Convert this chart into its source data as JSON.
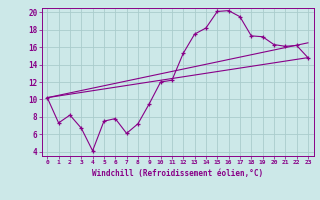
{
  "title": "",
  "xlabel": "Windchill (Refroidissement éolien,°C)",
  "background_color": "#cce8e8",
  "grid_color": "#aacccc",
  "line_color": "#880088",
  "figsize": [
    3.2,
    2.0
  ],
  "dpi": 100,
  "xlim": [
    -0.5,
    23.5
  ],
  "ylim": [
    3.5,
    20.5
  ],
  "yticks": [
    4,
    6,
    8,
    10,
    12,
    14,
    16,
    18,
    20
  ],
  "xticks": [
    0,
    1,
    2,
    3,
    4,
    5,
    6,
    7,
    8,
    9,
    10,
    11,
    12,
    13,
    14,
    15,
    16,
    17,
    18,
    19,
    20,
    21,
    22,
    23
  ],
  "series1_x": [
    0,
    1,
    2,
    3,
    4,
    5,
    6,
    7,
    8,
    9,
    10,
    11,
    12,
    13,
    14,
    15,
    16,
    17,
    18,
    19,
    20,
    21,
    22,
    23
  ],
  "series1_y": [
    10.2,
    7.3,
    8.2,
    6.7,
    4.1,
    7.5,
    7.8,
    6.1,
    7.2,
    9.5,
    12.0,
    12.2,
    15.3,
    17.5,
    18.2,
    20.1,
    20.2,
    19.5,
    17.3,
    17.2,
    16.3,
    16.1,
    16.2,
    14.8
  ],
  "series2_x": [
    0,
    23
  ],
  "series2_y": [
    10.2,
    14.8
  ],
  "series3_x": [
    0,
    23
  ],
  "series3_y": [
    10.2,
    16.5
  ]
}
